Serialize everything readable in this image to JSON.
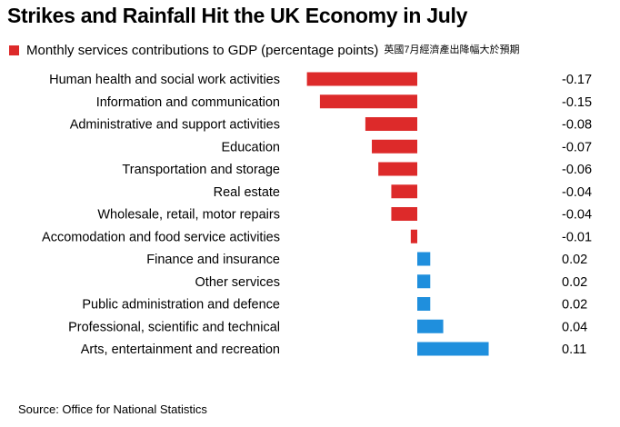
{
  "title": "Strikes and Rainfall Hit the UK Economy in July",
  "legend": {
    "label": "Monthly services contributions to GDP (percentage points)",
    "note": "英國7月經濟產出降幅大於預期"
  },
  "source": "Source: Office for National Statistics",
  "colors": {
    "negative": "#dd2a2a",
    "positive": "#1f8fdd"
  },
  "chart_data": {
    "type": "bar",
    "orientation": "horizontal",
    "title": "Strikes and Rainfall Hit the UK Economy in July",
    "legend": [
      "Monthly services contributions to GDP (percentage points)"
    ],
    "xlim": [
      -0.17,
      0.11
    ],
    "categories": [
      "Human health and social work activities",
      "Information and communication",
      "Administrative and support activities",
      "Education",
      "Transportation and storage",
      "Real estate",
      "Wholesale, retail, motor repairs",
      "Accomodation and food service activities",
      "Finance and insurance",
      "Other services",
      "Public administration and defence",
      "Professional, scientific and technical",
      "Arts, entertainment and recreation"
    ],
    "values": [
      -0.17,
      -0.15,
      -0.08,
      -0.07,
      -0.06,
      -0.04,
      -0.04,
      -0.01,
      0.02,
      0.02,
      0.02,
      0.04,
      0.11
    ],
    "value_labels": [
      "-0.17",
      "-0.15",
      "-0.08",
      "-0.07",
      "-0.06",
      "-0.04",
      "-0.04",
      "-0.01",
      "0.02",
      "0.02",
      "0.02",
      "0.04",
      "0.11"
    ]
  }
}
